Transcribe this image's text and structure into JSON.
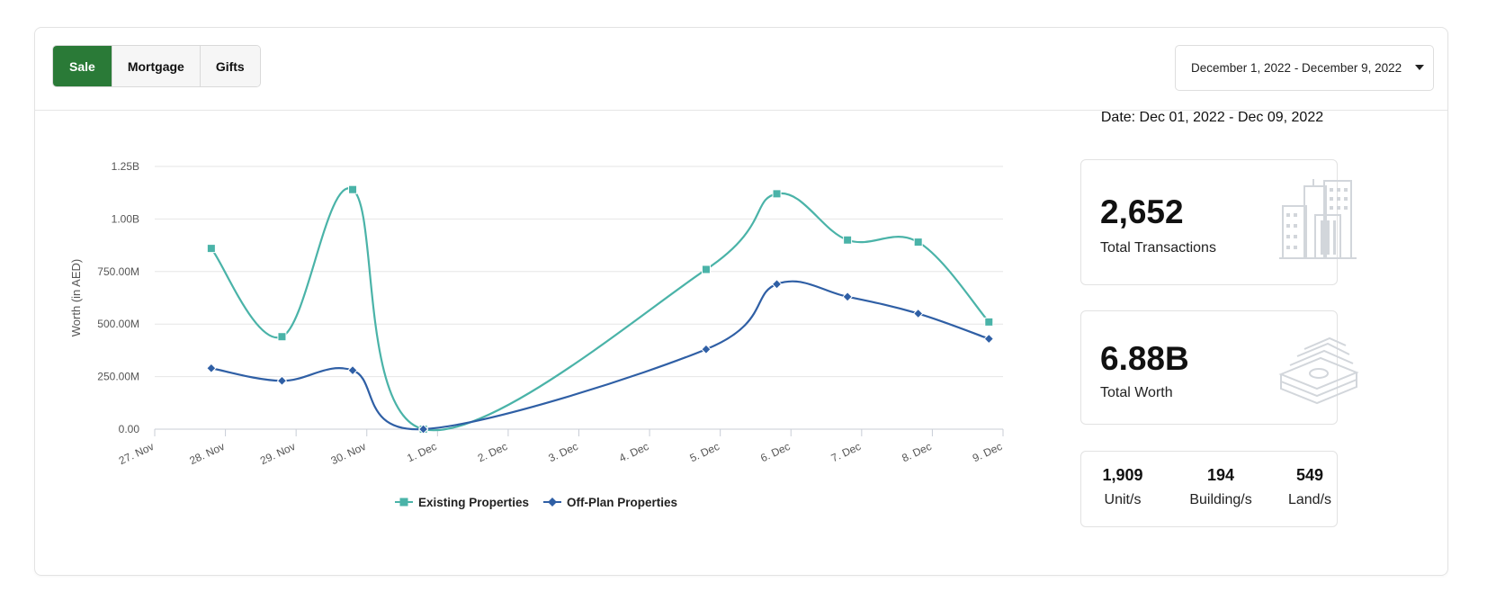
{
  "tabs": [
    {
      "label": "Sale",
      "active": true
    },
    {
      "label": "Mortgage",
      "active": false
    },
    {
      "label": "Gifts",
      "active": false
    }
  ],
  "date_range": {
    "label": "December 1, 2022 - December 9, 2022"
  },
  "summary": {
    "date_label": "Date: Dec 01, 2022 - Dec 09, 2022",
    "transactions": {
      "value": "2,652",
      "label": "Total Transactions"
    },
    "worth": {
      "value": "6.88B",
      "label": "Total Worth"
    },
    "breakdown": [
      {
        "value": "1,909",
        "label": "Unit/s"
      },
      {
        "value": "194",
        "label": "Building/s"
      },
      {
        "value": "549",
        "label": "Land/s"
      }
    ]
  },
  "colors": {
    "accent": "#2a7a37",
    "existing": "#4ab3a8",
    "offplan": "#2f5fa5",
    "icon": "#d2d6db"
  },
  "chart_data": {
    "type": "line",
    "title": "",
    "xlabel": "",
    "ylabel": "Worth (in AED)",
    "ylim": [
      0,
      1.25
    ],
    "y_ticks": [
      {
        "value": 0,
        "label": "0.00"
      },
      {
        "value": 0.25,
        "label": "250.00M"
      },
      {
        "value": 0.5,
        "label": "500.00M"
      },
      {
        "value": 0.75,
        "label": "750.00M"
      },
      {
        "value": 1.0,
        "label": "1.00B"
      },
      {
        "value": 1.25,
        "label": "1.25B"
      }
    ],
    "x_ticks": [
      "27. Nov",
      "28. Nov",
      "29. Nov",
      "30. Nov",
      "1. Dec",
      "2. Dec",
      "3. Dec",
      "4. Dec",
      "5. Dec",
      "6. Dec",
      "7. Dec",
      "8. Dec",
      "9. Dec"
    ],
    "x_range": [
      0,
      12
    ],
    "legend_position": "bottom-center",
    "series": [
      {
        "name": "Existing Properties",
        "marker": "square",
        "points": [
          [
            0.8,
            0.86
          ],
          [
            1.8,
            0.44
          ],
          [
            2.8,
            1.14
          ],
          [
            3.8,
            0.0
          ],
          [
            7.8,
            0.76
          ],
          [
            8.8,
            1.12
          ],
          [
            9.8,
            0.9
          ],
          [
            10.8,
            0.89
          ],
          [
            11.8,
            0.51
          ]
        ]
      },
      {
        "name": "Off-Plan Properties",
        "marker": "diamond",
        "points": [
          [
            0.8,
            0.29
          ],
          [
            1.8,
            0.23
          ],
          [
            2.8,
            0.28
          ],
          [
            3.8,
            0.0
          ],
          [
            7.8,
            0.38
          ],
          [
            8.8,
            0.69
          ],
          [
            9.8,
            0.63
          ],
          [
            10.8,
            0.55
          ],
          [
            11.8,
            0.43
          ]
        ]
      }
    ]
  }
}
